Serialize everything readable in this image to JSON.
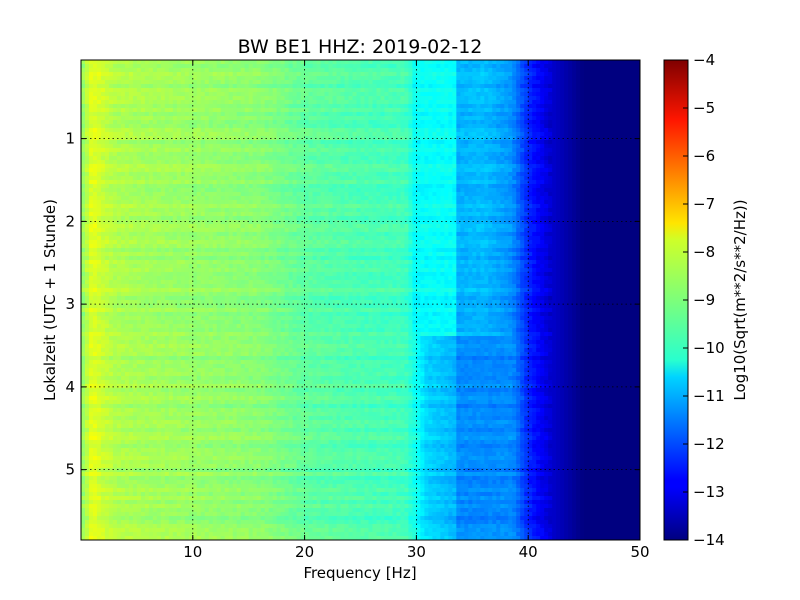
{
  "chart_data": {
    "type": "heatmap",
    "title": "BW BE1 HHZ: 2019-02-12",
    "xlabel": "Frequency [Hz]",
    "ylabel": "Lokalzeit (UTC + 1 Stunde)",
    "xlim": [
      0,
      50
    ],
    "ylim": [
      5.85,
      0.05
    ],
    "y_axis_inverted": true,
    "x_ticks": [
      10,
      20,
      30,
      40,
      50
    ],
    "x_tick_labels": [
      "10",
      "20",
      "30",
      "40",
      "50"
    ],
    "y_ticks": [
      1,
      2,
      3,
      4,
      5
    ],
    "y_tick_labels": [
      "1",
      "2",
      "3",
      "4",
      "5"
    ],
    "grid": true,
    "colormap": "jet",
    "colorbar": {
      "label": "Log10(Sqrt(m**2/s**2/Hz))",
      "range": [
        -14,
        -4
      ],
      "ticks": [
        -4,
        -5,
        -6,
        -7,
        -8,
        -9,
        -10,
        -11,
        -12,
        -13,
        -14
      ],
      "tick_labels": [
        "−4",
        "−5",
        "−6",
        "−7",
        "−8",
        "−9",
        "−10",
        "−11",
        "−12",
        "−13",
        "−14"
      ]
    },
    "spectral_profile": {
      "frequency_hz": [
        0,
        1,
        2,
        3,
        5,
        8,
        12,
        16,
        20,
        25,
        29,
        31,
        33.5,
        36,
        38.5,
        40,
        42,
        45,
        50
      ],
      "log10_amplitude": [
        -8.9,
        -8.0,
        -8.3,
        -8.5,
        -8.6,
        -8.7,
        -8.8,
        -8.9,
        -9.3,
        -9.5,
        -9.6,
        -10.7,
        -11.0,
        -10.9,
        -11.3,
        -12.4,
        -13.2,
        -14.0,
        -14.0
      ]
    },
    "transition": {
      "note_time_hours": 3.4,
      "band_before_hz": [
        33.5,
        38.5
      ],
      "band_after_hz": [
        29.5,
        33.5
      ]
    }
  }
}
